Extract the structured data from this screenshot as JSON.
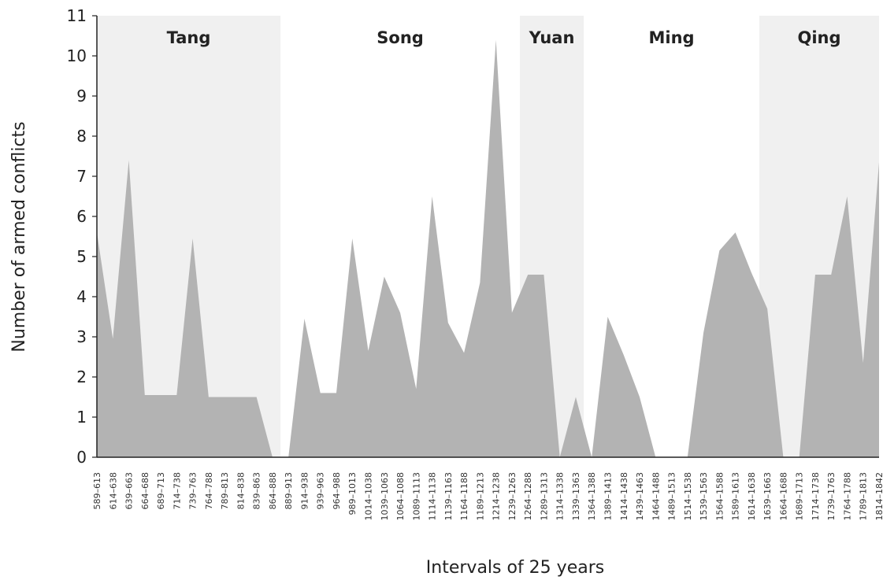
{
  "chart_data": {
    "type": "area",
    "xlabel": "Intervals of 25 years",
    "ylabel": "Number of armed conflicts",
    "ylim": [
      0,
      11
    ],
    "yticks": [
      0,
      1,
      2,
      3,
      4,
      5,
      6,
      7,
      8,
      9,
      10,
      11
    ],
    "grid": false,
    "area_color": "#b3b3b3",
    "band_color": "#f0f0f0",
    "categories": [
      "589–613",
      "614–638",
      "639–663",
      "664–688",
      "689–713",
      "714–738",
      "739–763",
      "764–788",
      "789–813",
      "814–838",
      "839–863",
      "864–888",
      "889–913",
      "914–938",
      "939–963",
      "964–988",
      "989–1013",
      "1014–1038",
      "1039–1063",
      "1064–1088",
      "1089–1113",
      "1114–1138",
      "1139–1163",
      "1164–1188",
      "1189–1213",
      "1214–1238",
      "1239–1263",
      "1264–1288",
      "1289–1313",
      "1314–1338",
      "1339–1363",
      "1364–1388",
      "1389–1413",
      "1414–1438",
      "1439–1463",
      "1464–1488",
      "1489–1513",
      "1514–1538",
      "1539–1563",
      "1564–1588",
      "1589–1613",
      "1614–1638",
      "1639–1663",
      "1664–1688",
      "1689–1713",
      "1714–1738",
      "1739–1763",
      "1764–1788",
      "1789–1813",
      "1814–1842"
    ],
    "values": [
      5.6,
      2.95,
      7.4,
      1.55,
      1.55,
      1.55,
      5.45,
      1.5,
      1.5,
      1.5,
      1.5,
      0,
      0,
      3.45,
      1.6,
      1.6,
      5.45,
      2.65,
      4.5,
      3.6,
      1.7,
      6.5,
      3.35,
      2.6,
      4.35,
      10.4,
      3.6,
      4.55,
      4.55,
      0,
      1.5,
      0,
      3.5,
      2.55,
      1.5,
      0,
      0,
      0,
      3.1,
      5.15,
      5.6,
      4.6,
      3.7,
      0,
      0,
      4.55,
      4.55,
      6.5,
      2.35,
      7.35
    ],
    "periods": [
      {
        "name": "Tang",
        "start": 0,
        "end": 11,
        "shaded": true
      },
      {
        "name": "Song",
        "start": 12,
        "end": 26,
        "shaded": false
      },
      {
        "name": "Yuan",
        "start": 27,
        "end": 30,
        "shaded": true
      },
      {
        "name": "Ming",
        "start": 31,
        "end": 41,
        "shaded": false
      },
      {
        "name": "Qing",
        "start": 42,
        "end": 49,
        "shaded": true
      }
    ]
  }
}
